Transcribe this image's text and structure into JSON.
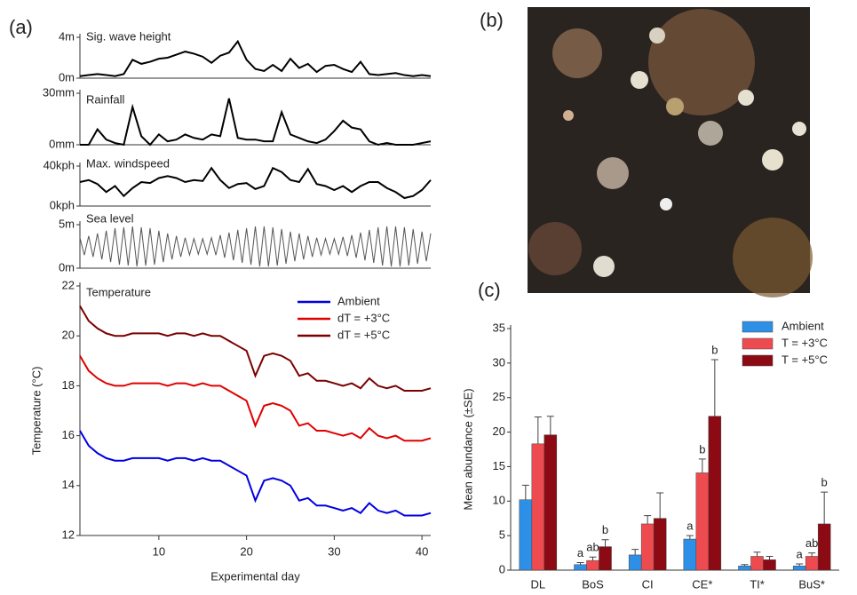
{
  "panel_labels": [
    "(a)",
    "(b)",
    "(c)"
  ],
  "chart_data": [
    {
      "type": "line",
      "title": "Sig. wave height",
      "color": "#000000",
      "x": [
        1,
        2,
        3,
        4,
        5,
        6,
        7,
        8,
        9,
        10,
        11,
        12,
        13,
        14,
        15,
        16,
        17,
        18,
        19,
        20,
        21,
        22,
        23,
        24,
        25,
        26,
        27,
        28,
        29,
        30,
        31,
        32,
        33,
        34,
        35,
        36,
        37,
        38,
        39,
        40,
        41
      ],
      "values": [
        0.2,
        0.3,
        0.4,
        0.3,
        0.2,
        0.4,
        1.8,
        1.4,
        1.6,
        1.9,
        2.0,
        2.3,
        2.6,
        2.4,
        2.1,
        1.5,
        2.2,
        2.5,
        3.6,
        1.8,
        0.9,
        0.7,
        1.3,
        0.7,
        1.9,
        1.0,
        1.4,
        0.6,
        1.2,
        1.3,
        0.9,
        0.6,
        1.6,
        0.4,
        0.3,
        0.4,
        0.5,
        0.3,
        0.2,
        0.3,
        0.2
      ],
      "xlim": [
        1,
        41
      ],
      "ylim": [
        0,
        4
      ],
      "yticks": [
        {
          "value": 0,
          "label": "0m"
        },
        {
          "value": 4,
          "label": "4m"
        }
      ]
    },
    {
      "type": "line",
      "title": "Rainfall",
      "color": "#000000",
      "x": [
        1,
        2,
        3,
        4,
        5,
        6,
        7,
        8,
        9,
        10,
        11,
        12,
        13,
        14,
        15,
        16,
        17,
        18,
        19,
        20,
        21,
        22,
        23,
        24,
        25,
        26,
        27,
        28,
        29,
        30,
        31,
        32,
        33,
        34,
        35,
        36,
        37,
        38,
        39,
        40,
        41
      ],
      "values": [
        0,
        0,
        9,
        3,
        1,
        0,
        22,
        5,
        0,
        6,
        2,
        3,
        6,
        4,
        3,
        6,
        5,
        27,
        4,
        3,
        3,
        2,
        2,
        19,
        6,
        4,
        2,
        1,
        3,
        8,
        14,
        10,
        9,
        2,
        0,
        1,
        0,
        0,
        0,
        1,
        2
      ],
      "xlim": [
        1,
        41
      ],
      "ylim": [
        0,
        30
      ],
      "yticks": [
        {
          "value": 0,
          "label": "0mm"
        },
        {
          "value": 30,
          "label": "30mm"
        }
      ]
    },
    {
      "type": "line",
      "title": "Max. windspeed",
      "color": "#000000",
      "x": [
        1,
        2,
        3,
        4,
        5,
        6,
        7,
        8,
        9,
        10,
        11,
        12,
        13,
        14,
        15,
        16,
        17,
        18,
        19,
        20,
        21,
        22,
        23,
        24,
        25,
        26,
        27,
        28,
        29,
        30,
        31,
        32,
        33,
        34,
        35,
        36,
        37,
        38,
        39,
        40,
        41
      ],
      "values": [
        24,
        26,
        22,
        14,
        20,
        10,
        18,
        24,
        23,
        28,
        30,
        28,
        24,
        26,
        25,
        38,
        26,
        18,
        22,
        23,
        17,
        20,
        38,
        34,
        26,
        24,
        37,
        22,
        20,
        16,
        20,
        14,
        20,
        24,
        24,
        18,
        14,
        8,
        10,
        16,
        26
      ],
      "xlim": [
        1,
        41
      ],
      "ylim": [
        0,
        40
      ],
      "yticks": [
        {
          "value": 0,
          "label": "0kph"
        },
        {
          "value": 40,
          "label": "40kph"
        }
      ]
    },
    {
      "type": "line",
      "title": "Sea level",
      "color": "#555555",
      "x": [
        1,
        1.5,
        2,
        2.5,
        3,
        3.5,
        4,
        4.5,
        5,
        5.5,
        6,
        6.5,
        7,
        7.5,
        8,
        8.5,
        9,
        9.5,
        10,
        10.5,
        11,
        11.5,
        12,
        12.5,
        13,
        13.5,
        14,
        14.5,
        15,
        15.5,
        16,
        16.5,
        17,
        17.5,
        18,
        18.5,
        19,
        19.5,
        20,
        20.5,
        21,
        21.5,
        22,
        22.5,
        23,
        23.5,
        24,
        24.5,
        25,
        25.5,
        26,
        26.5,
        27,
        27.5,
        28,
        28.5,
        29,
        29.5,
        30,
        30.5,
        31,
        31.5,
        32,
        32.5,
        33,
        33.5,
        34,
        34.5,
        35,
        35.5,
        36,
        36.5,
        37,
        37.5,
        38,
        38.5,
        39,
        39.5,
        40,
        40.5,
        41
      ],
      "values": [
        3.5,
        1.5,
        3.7,
        1.3,
        4.0,
        1.0,
        4.3,
        0.7,
        4.6,
        0.4,
        4.7,
        0.3,
        4.8,
        0.2,
        4.7,
        0.3,
        4.6,
        0.4,
        4.3,
        0.7,
        4.0,
        1.0,
        3.7,
        1.3,
        3.5,
        1.5,
        3.4,
        1.6,
        3.4,
        1.6,
        3.5,
        1.5,
        3.8,
        1.2,
        4.1,
        0.9,
        4.4,
        0.6,
        4.6,
        0.4,
        4.8,
        0.2,
        4.8,
        0.2,
        4.7,
        0.3,
        4.5,
        0.5,
        4.2,
        0.8,
        4.0,
        1.0,
        3.7,
        1.3,
        3.5,
        1.5,
        3.4,
        1.6,
        3.4,
        1.6,
        3.6,
        1.4,
        3.8,
        1.2,
        4.1,
        0.9,
        4.4,
        0.6,
        4.7,
        0.3,
        4.8,
        0.2,
        4.8,
        0.2,
        4.7,
        0.3,
        4.5,
        0.5,
        4.2,
        0.8,
        4.0
      ],
      "xlim": [
        1,
        41
      ],
      "ylim": [
        0,
        5
      ],
      "yticks": [
        {
          "value": 0,
          "label": "0m"
        },
        {
          "value": 5,
          "label": "5m"
        }
      ]
    },
    {
      "type": "line",
      "title": "Temperature",
      "xlabel": "Experimental day",
      "ylabel": "Temperature (°C)",
      "x": [
        1,
        2,
        3,
        4,
        5,
        6,
        7,
        8,
        9,
        10,
        11,
        12,
        13,
        14,
        15,
        16,
        17,
        18,
        19,
        20,
        21,
        22,
        23,
        24,
        25,
        26,
        27,
        28,
        29,
        30,
        31,
        32,
        33,
        34,
        35,
        36,
        37,
        38,
        39,
        40,
        41
      ],
      "series": [
        {
          "name": "Ambient",
          "color": "#0000e0",
          "values": [
            16.2,
            15.6,
            15.3,
            15.1,
            15.0,
            15.0,
            15.1,
            15.1,
            15.1,
            15.1,
            15.0,
            15.1,
            15.1,
            15.0,
            15.1,
            15.0,
            15.0,
            14.8,
            14.6,
            14.4,
            13.4,
            14.2,
            14.3,
            14.2,
            14.0,
            13.4,
            13.5,
            13.2,
            13.2,
            13.1,
            13.0,
            13.1,
            12.9,
            13.3,
            13.0,
            12.9,
            13.0,
            12.8,
            12.8,
            12.8,
            12.9
          ]
        },
        {
          "name": "dT = +3°C",
          "color": "#e00000",
          "values": [
            19.2,
            18.6,
            18.3,
            18.1,
            18.0,
            18.0,
            18.1,
            18.1,
            18.1,
            18.1,
            18.0,
            18.1,
            18.1,
            18.0,
            18.1,
            18.0,
            18.0,
            17.8,
            17.6,
            17.4,
            16.4,
            17.2,
            17.3,
            17.2,
            17.0,
            16.4,
            16.5,
            16.2,
            16.2,
            16.1,
            16.0,
            16.1,
            15.9,
            16.3,
            16.0,
            15.9,
            16.0,
            15.8,
            15.8,
            15.8,
            15.9
          ]
        },
        {
          "name": "dT = +5°C",
          "color": "#7a0000",
          "values": [
            21.2,
            20.6,
            20.3,
            20.1,
            20.0,
            20.0,
            20.1,
            20.1,
            20.1,
            20.1,
            20.0,
            20.1,
            20.1,
            20.0,
            20.1,
            20.0,
            20.0,
            19.8,
            19.6,
            19.4,
            18.4,
            19.2,
            19.3,
            19.2,
            19.0,
            18.4,
            18.5,
            18.2,
            18.2,
            18.1,
            18.0,
            18.1,
            17.9,
            18.3,
            18.0,
            17.9,
            18.0,
            17.8,
            17.8,
            17.8,
            17.9
          ]
        }
      ],
      "xlim": [
        1,
        41
      ],
      "xticks": [
        10,
        20,
        30,
        40
      ],
      "ylim": [
        12,
        22
      ],
      "yticks": [
        12,
        14,
        16,
        18,
        20,
        22
      ],
      "legend": "upper-right"
    },
    {
      "type": "bar",
      "ylabel": "Mean abundance (±SE)",
      "categories": [
        "DL",
        "BoS",
        "CI",
        "CE*",
        "TI*",
        "BuS*"
      ],
      "series": [
        {
          "name": "Ambient",
          "color": "#2e8fe6",
          "values": [
            10.2,
            0.8,
            2.2,
            4.5,
            0.6,
            0.6
          ],
          "errors": [
            2.1,
            0.3,
            0.8,
            0.5,
            0.2,
            0.3
          ],
          "letters": [
            null,
            "a",
            null,
            "a",
            null,
            "a"
          ]
        },
        {
          "name": "T = +3°C",
          "color": "#ee4b50",
          "values": [
            18.3,
            1.4,
            6.7,
            14.1,
            2.0,
            2.0
          ],
          "errors": [
            3.9,
            0.5,
            1.2,
            2.0,
            0.6,
            0.5
          ],
          "letters": [
            null,
            "ab",
            null,
            "b",
            null,
            "ab"
          ]
        },
        {
          "name": "T = +5°C",
          "color": "#8b0a14",
          "values": [
            19.6,
            3.4,
            7.5,
            22.3,
            1.5,
            6.7
          ],
          "errors": [
            2.7,
            1.0,
            3.7,
            8.2,
            0.5,
            4.6
          ],
          "letters": [
            null,
            "b",
            null,
            "b",
            null,
            "b"
          ]
        }
      ],
      "ylim": [
        0,
        35
      ],
      "yticks": [
        0,
        5,
        10,
        15,
        20,
        25,
        30,
        35
      ],
      "legend": "upper-right"
    }
  ]
}
